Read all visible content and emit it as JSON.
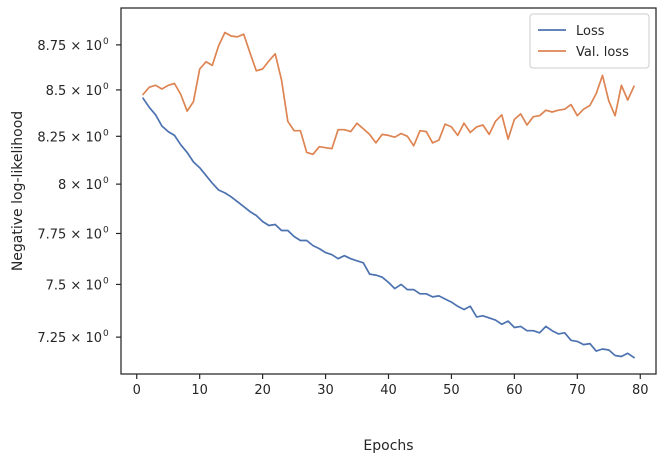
{
  "chart_data": {
    "type": "line",
    "title": "",
    "xlabel": "Epochs",
    "ylabel": "Negative log-likelihood",
    "y_scale": "log",
    "xlim": [
      -2.5,
      82.5
    ],
    "ylim": [
      7.08,
      8.96
    ],
    "x_ticks": [
      0,
      10,
      20,
      30,
      40,
      50,
      60,
      70,
      80
    ],
    "y_ticks": [
      {
        "value": 7.25,
        "mantissa": "7.25"
      },
      {
        "value": 7.5,
        "mantissa": "7.5"
      },
      {
        "value": 7.75,
        "mantissa": "7.75"
      },
      {
        "value": 8.0,
        "mantissa": "8"
      },
      {
        "value": 8.25,
        "mantissa": "8.25"
      },
      {
        "value": 8.5,
        "mantissa": "8.5"
      },
      {
        "value": 8.75,
        "mantissa": "8.75"
      }
    ],
    "tick_suffix": "× 10",
    "tick_exponent": "0",
    "grid": false,
    "legend_position": "top-right",
    "x": [
      1,
      2,
      3,
      4,
      5,
      6,
      7,
      8,
      9,
      10,
      11,
      12,
      13,
      14,
      15,
      16,
      17,
      18,
      19,
      20,
      21,
      22,
      23,
      24,
      25,
      26,
      27,
      28,
      29,
      30,
      31,
      32,
      33,
      34,
      35,
      36,
      37,
      38,
      39,
      40,
      41,
      42,
      43,
      44,
      45,
      46,
      47,
      48,
      49,
      50,
      51,
      52,
      53,
      54,
      55,
      56,
      57,
      58,
      59,
      60,
      61,
      62,
      63,
      64,
      65,
      66,
      67,
      68,
      69,
      70,
      71,
      72,
      73,
      74,
      75,
      76,
      77,
      78,
      79
    ],
    "series": [
      {
        "name": "Loss",
        "color": "#4c72b0",
        "values": [
          8.455,
          8.405,
          8.365,
          8.305,
          8.275,
          8.255,
          8.205,
          8.165,
          8.115,
          8.085,
          8.045,
          8.005,
          7.97,
          7.955,
          7.935,
          7.91,
          7.885,
          7.86,
          7.84,
          7.81,
          7.79,
          7.795,
          7.765,
          7.765,
          7.735,
          7.715,
          7.715,
          7.69,
          7.675,
          7.655,
          7.645,
          7.625,
          7.64,
          7.625,
          7.615,
          7.605,
          7.55,
          7.545,
          7.535,
          7.51,
          7.48,
          7.5,
          7.475,
          7.475,
          7.455,
          7.455,
          7.44,
          7.445,
          7.43,
          7.415,
          7.395,
          7.38,
          7.395,
          7.345,
          7.35,
          7.34,
          7.33,
          7.31,
          7.325,
          7.295,
          7.3,
          7.28,
          7.28,
          7.27,
          7.3,
          7.28,
          7.265,
          7.27,
          7.235,
          7.23,
          7.215,
          7.22,
          7.185,
          7.195,
          7.19,
          7.165,
          7.16,
          7.175,
          7.155
        ]
      },
      {
        "name": "Val. loss",
        "color": "#dd8452",
        "values": [
          8.475,
          8.515,
          8.525,
          8.505,
          8.525,
          8.535,
          8.475,
          8.385,
          8.435,
          8.615,
          8.655,
          8.635,
          8.745,
          8.82,
          8.8,
          8.795,
          8.81,
          8.705,
          8.605,
          8.615,
          8.66,
          8.7,
          8.555,
          8.33,
          8.28,
          8.28,
          8.165,
          8.155,
          8.195,
          8.19,
          8.185,
          8.285,
          8.285,
          8.275,
          8.32,
          8.29,
          8.26,
          8.215,
          8.26,
          8.255,
          8.245,
          8.265,
          8.25,
          8.2,
          8.28,
          8.275,
          8.215,
          8.23,
          8.315,
          8.3,
          8.255,
          8.32,
          8.27,
          8.3,
          8.31,
          8.26,
          8.33,
          8.365,
          8.235,
          8.34,
          8.37,
          8.31,
          8.355,
          8.36,
          8.39,
          8.38,
          8.39,
          8.395,
          8.42,
          8.36,
          8.395,
          8.415,
          8.48,
          8.58,
          8.44,
          8.36,
          8.525,
          8.445,
          8.52
        ]
      }
    ]
  }
}
